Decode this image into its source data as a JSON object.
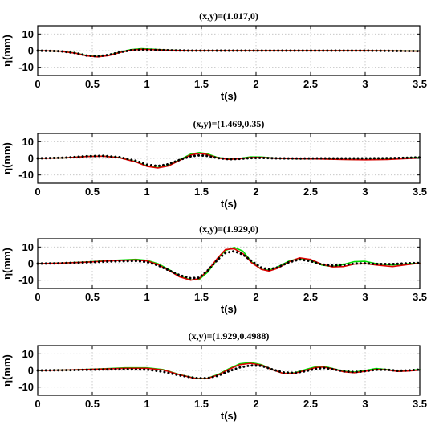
{
  "chart_data": [
    {
      "type": "line",
      "title": "(x,y)=(1.017,0)",
      "xlabel": "t(s)",
      "ylabel": "η(mm)",
      "xlim": [
        0,
        3.5
      ],
      "ylim": [
        -15,
        15
      ],
      "xticks": [
        "0",
        "0.5",
        "1",
        "1.5",
        "2",
        "2.5",
        "3",
        "3.5"
      ],
      "yticks": [
        "10",
        "0",
        "-10"
      ],
      "grid": true,
      "series": [
        {
          "color": "#00dd00",
          "style": "solid",
          "x": [
            0,
            0.2,
            0.35,
            0.45,
            0.55,
            0.65,
            0.75,
            0.85,
            0.95,
            1.05,
            1.2,
            1.4,
            1.6,
            1.8,
            2.0,
            2.5,
            3.0,
            3.5
          ],
          "y": [
            0,
            -0.3,
            -1.5,
            -3.0,
            -3.6,
            -2.8,
            -1.0,
            0.6,
            1.2,
            0.9,
            0.3,
            0,
            0,
            0,
            0,
            0,
            0,
            -0.2
          ]
        },
        {
          "color": "#dd0000",
          "style": "solid",
          "x": [
            0,
            0.2,
            0.35,
            0.45,
            0.55,
            0.65,
            0.75,
            0.85,
            0.95,
            1.05,
            1.2,
            1.4,
            1.6,
            1.8,
            2.0,
            2.5,
            3.0,
            3.5
          ],
          "y": [
            0,
            -0.3,
            -1.6,
            -3.2,
            -3.8,
            -3.0,
            -1.2,
            0.3,
            0.8,
            0.6,
            0.2,
            0,
            0,
            0,
            0,
            0,
            0,
            -0.3
          ]
        },
        {
          "color": "#000000",
          "style": "dotted",
          "x": [
            0,
            0.2,
            0.35,
            0.45,
            0.55,
            0.65,
            0.75,
            0.85,
            0.95,
            1.05,
            1.2,
            1.4,
            1.6,
            1.8,
            2.0,
            2.5,
            3.0,
            3.5
          ],
          "y": [
            0,
            -0.3,
            -1.5,
            -3.0,
            -3.4,
            -2.6,
            -1.0,
            0.2,
            0.6,
            0.5,
            0.2,
            0,
            0,
            0,
            0,
            0,
            0,
            -0.3
          ]
        }
      ]
    },
    {
      "type": "line",
      "title": "(x,y)=(1.469,0.35)",
      "xlabel": "t(s)",
      "ylabel": "η(mm)",
      "xlim": [
        0,
        3.5
      ],
      "ylim": [
        -15,
        15
      ],
      "xticks": [
        "0",
        "0.5",
        "1",
        "1.5",
        "2",
        "2.5",
        "3",
        "3.5"
      ],
      "yticks": [
        "10",
        "0",
        "-10"
      ],
      "grid": true,
      "series": [
        {
          "color": "#00dd00",
          "style": "solid",
          "x": [
            0,
            0.25,
            0.45,
            0.6,
            0.75,
            0.9,
            1.0,
            1.1,
            1.2,
            1.3,
            1.4,
            1.48,
            1.55,
            1.65,
            1.75,
            1.85,
            1.95,
            2.05,
            2.2,
            2.4,
            2.6,
            2.8,
            3.0,
            3.2,
            3.35,
            3.5
          ],
          "y": [
            0,
            0.3,
            1.2,
            1.4,
            0.5,
            -2.0,
            -4.5,
            -5.6,
            -4.2,
            -0.8,
            2.5,
            3.5,
            2.8,
            0.5,
            -0.4,
            0,
            0.9,
            0.8,
            0,
            -0.2,
            -0.3,
            -0.6,
            -0.8,
            -0.5,
            0.2,
            0.5
          ]
        },
        {
          "color": "#dd0000",
          "style": "solid",
          "x": [
            0,
            0.25,
            0.45,
            0.6,
            0.75,
            0.9,
            1.0,
            1.1,
            1.2,
            1.3,
            1.4,
            1.48,
            1.55,
            1.65,
            1.75,
            1.85,
            1.95,
            2.05,
            2.2,
            2.4,
            2.6,
            2.8,
            3.0,
            3.2,
            3.35,
            3.5
          ],
          "y": [
            0,
            0.3,
            1.1,
            1.3,
            0.4,
            -2.2,
            -4.8,
            -5.8,
            -4.5,
            -1.2,
            2.0,
            3.0,
            2.3,
            0.2,
            -0.6,
            -0.2,
            0.5,
            0.5,
            0,
            -0.2,
            -0.4,
            -0.7,
            -0.9,
            -0.7,
            -0.2,
            0.2
          ]
        },
        {
          "color": "#000000",
          "style": "dotted",
          "x": [
            0,
            0.25,
            0.45,
            0.6,
            0.75,
            0.9,
            1.0,
            1.1,
            1.2,
            1.3,
            1.4,
            1.48,
            1.55,
            1.65,
            1.75,
            1.85,
            1.95,
            2.05,
            2.2,
            2.4,
            2.6,
            2.8,
            3.0,
            3.2,
            3.35,
            3.5
          ],
          "y": [
            0,
            0.4,
            1.3,
            1.5,
            0.7,
            -1.5,
            -3.8,
            -4.6,
            -3.5,
            -0.9,
            1.2,
            1.8,
            1.5,
            0.2,
            -0.5,
            -0.3,
            0.2,
            0.3,
            0,
            -0.1,
            0,
            0,
            0,
            0.1,
            0.3,
            0.6
          ]
        }
      ]
    },
    {
      "type": "line",
      "title": "(x,y)=(1.929,0)",
      "xlabel": "t(s)",
      "ylabel": "η(mm)",
      "xlim": [
        0,
        3.5
      ],
      "ylim": [
        -15,
        15
      ],
      "xticks": [
        "0",
        "0.5",
        "1",
        "1.5",
        "2",
        "2.5",
        "3",
        "3.5"
      ],
      "yticks": [
        "10",
        "0",
        "-10"
      ],
      "grid": true,
      "series": [
        {
          "color": "#00dd00",
          "style": "solid",
          "x": [
            0,
            0.2,
            0.45,
            0.7,
            0.9,
            1.0,
            1.1,
            1.2,
            1.3,
            1.4,
            1.48,
            1.56,
            1.65,
            1.72,
            1.8,
            1.88,
            1.96,
            2.05,
            2.12,
            2.2,
            2.3,
            2.4,
            2.5,
            2.6,
            2.7,
            2.8,
            2.9,
            3.0,
            3.1,
            3.25,
            3.4,
            3.5
          ],
          "y": [
            0,
            0.3,
            1.0,
            2.0,
            2.6,
            2.0,
            0,
            -3.5,
            -7.5,
            -9.8,
            -9.5,
            -5.0,
            3.0,
            8.0,
            9.8,
            7.5,
            1.0,
            -3.5,
            -4.0,
            -2.0,
            1.5,
            3.2,
            2.0,
            -0.8,
            -1.8,
            -0.5,
            1.2,
            1.4,
            0,
            -0.8,
            0,
            0.3
          ]
        },
        {
          "color": "#dd0000",
          "style": "solid",
          "x": [
            0,
            0.2,
            0.45,
            0.7,
            0.9,
            1.0,
            1.1,
            1.2,
            1.3,
            1.4,
            1.48,
            1.56,
            1.65,
            1.72,
            1.8,
            1.88,
            1.96,
            2.05,
            2.12,
            2.2,
            2.3,
            2.4,
            2.5,
            2.6,
            2.7,
            2.8,
            2.9,
            3.0,
            3.1,
            3.25,
            3.4,
            3.5
          ],
          "y": [
            0,
            0.3,
            0.9,
            1.8,
            2.2,
            1.6,
            -0.5,
            -4.0,
            -8.0,
            -10.0,
            -9.0,
            -4.0,
            3.5,
            8.5,
            9.0,
            6.0,
            0.5,
            -3.5,
            -4.5,
            -2.8,
            1.0,
            3.5,
            2.5,
            -0.3,
            -2.0,
            -1.8,
            -0.3,
            0,
            -0.8,
            -1.8,
            -0.5,
            0.3
          ]
        },
        {
          "color": "#000000",
          "style": "dotted",
          "x": [
            0,
            0.2,
            0.45,
            0.7,
            0.9,
            1.0,
            1.1,
            1.2,
            1.3,
            1.4,
            1.48,
            1.56,
            1.65,
            1.72,
            1.8,
            1.88,
            1.96,
            2.05,
            2.12,
            2.2,
            2.3,
            2.4,
            2.5,
            2.6,
            2.7,
            2.8,
            2.9,
            3.0,
            3.1,
            3.25,
            3.4,
            3.5
          ],
          "y": [
            0,
            0.2,
            0.8,
            1.4,
            1.6,
            1.0,
            -1.0,
            -4.0,
            -7.0,
            -8.8,
            -8.5,
            -4.0,
            2.5,
            6.5,
            7.5,
            5.5,
            1.5,
            -2.5,
            -3.5,
            -2.2,
            0.8,
            2.5,
            1.5,
            -0.5,
            -1.2,
            -0.8,
            0,
            0.2,
            -0.2,
            -0.3,
            0.2,
            0.4
          ]
        }
      ]
    },
    {
      "type": "line",
      "title": "(x,y)=(1.929,0.4988)",
      "xlabel": "t(s)",
      "ylabel": "η(mm)",
      "xlim": [
        0,
        3.5
      ],
      "ylim": [
        -15,
        15
      ],
      "xticks": [
        "0",
        "0.5",
        "1",
        "1.5",
        "2",
        "2.5",
        "3",
        "3.5"
      ],
      "yticks": [
        "10",
        "0",
        "-10"
      ],
      "grid": true,
      "series": [
        {
          "color": "#00dd00",
          "style": "solid",
          "x": [
            0,
            0.3,
            0.6,
            0.8,
            1.0,
            1.15,
            1.3,
            1.45,
            1.55,
            1.65,
            1.75,
            1.85,
            1.95,
            2.05,
            2.15,
            2.25,
            2.35,
            2.45,
            2.55,
            2.62,
            2.7,
            2.8,
            2.9,
            3.0,
            3.1,
            3.2,
            3.3,
            3.4,
            3.5
          ],
          "y": [
            0,
            0.3,
            1.0,
            1.6,
            1.6,
            0.5,
            -2.5,
            -4.8,
            -4.8,
            -2.5,
            1.0,
            4.0,
            4.8,
            3.5,
            0.5,
            -1.8,
            -1.5,
            0.5,
            2.2,
            2.5,
            1.2,
            -0.5,
            -1.0,
            0,
            1.2,
            0.5,
            -0.5,
            0,
            0.6
          ]
        },
        {
          "color": "#dd0000",
          "style": "solid",
          "x": [
            0,
            0.3,
            0.6,
            0.8,
            1.0,
            1.15,
            1.3,
            1.45,
            1.55,
            1.65,
            1.75,
            1.85,
            1.95,
            2.05,
            2.15,
            2.25,
            2.35,
            2.45,
            2.55,
            2.62,
            2.7,
            2.8,
            2.9,
            3.0,
            3.1,
            3.2,
            3.3,
            3.4,
            3.5
          ],
          "y": [
            0,
            0.3,
            0.9,
            1.3,
            1.3,
            0.3,
            -2.6,
            -4.9,
            -4.9,
            -2.8,
            0.6,
            3.5,
            4.3,
            3.2,
            0.4,
            -1.8,
            -1.8,
            0,
            1.8,
            2.0,
            1.0,
            -0.8,
            -1.4,
            -0.5,
            0.6,
            0.3,
            -0.6,
            -0.3,
            0.2
          ]
        },
        {
          "color": "#000000",
          "style": "dotted",
          "x": [
            0,
            0.3,
            0.6,
            0.8,
            1.0,
            1.15,
            1.3,
            1.45,
            1.55,
            1.65,
            1.75,
            1.85,
            1.95,
            2.05,
            2.15,
            2.25,
            2.35,
            2.45,
            2.55,
            2.62,
            2.7,
            2.8,
            2.9,
            3.0,
            3.1,
            3.2,
            3.3,
            3.4,
            3.5
          ],
          "y": [
            0,
            0.2,
            0.6,
            0.7,
            0.5,
            -0.8,
            -3.0,
            -4.6,
            -4.7,
            -3.2,
            -0.5,
            1.8,
            3.0,
            2.8,
            0.6,
            -1.2,
            -1.5,
            -0.5,
            1.0,
            1.5,
            0.8,
            -0.5,
            -1.0,
            -0.4,
            0.4,
            0.4,
            -0.2,
            0,
            0.5
          ]
        }
      ]
    }
  ]
}
